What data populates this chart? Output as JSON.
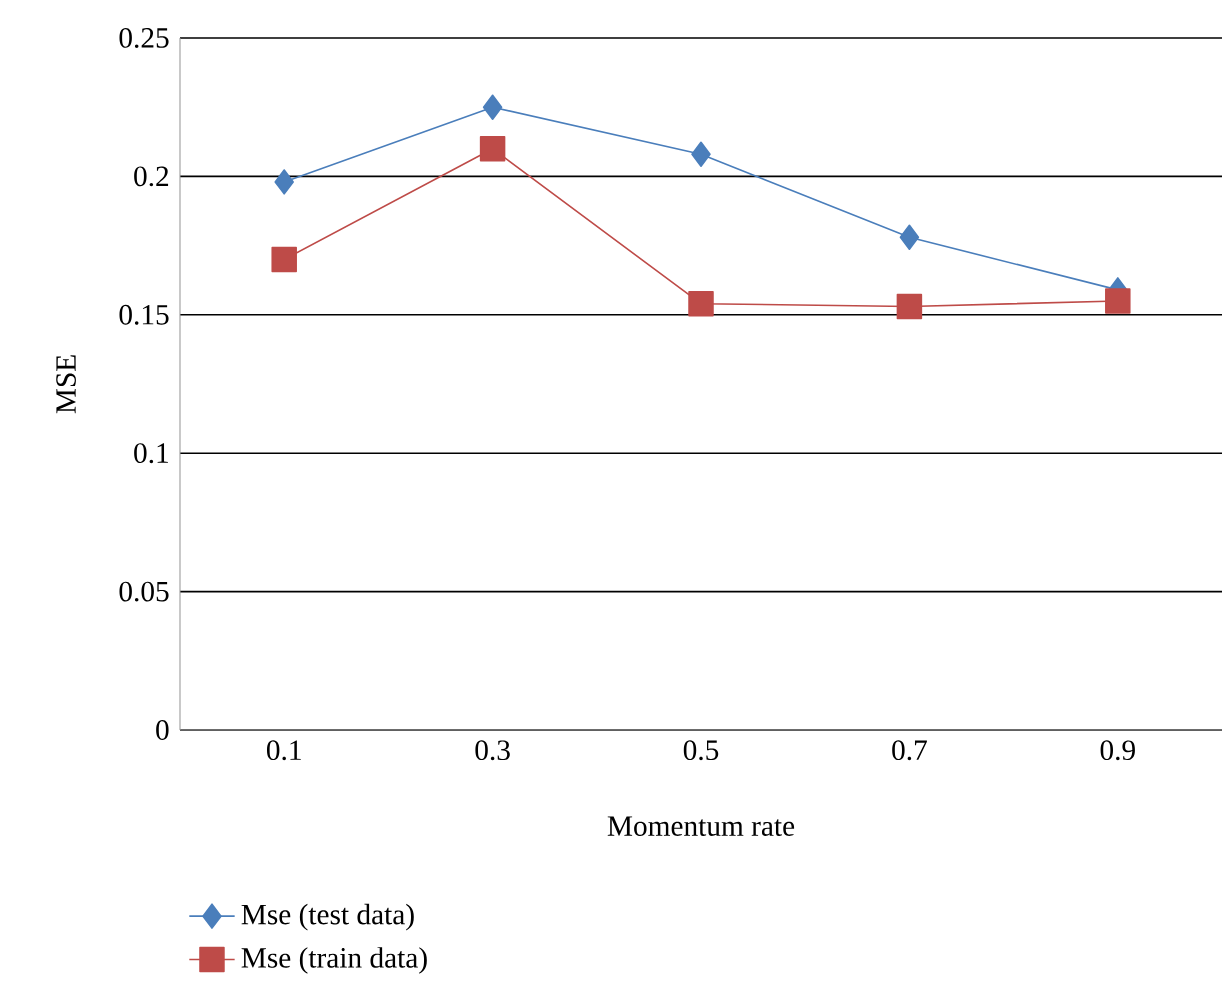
{
  "chart_data": {
    "type": "line",
    "xlabel": "Momentum rate",
    "ylabel": "MSE",
    "categories": [
      "0.1",
      "0.3",
      "0.5",
      "0.7",
      "0.9"
    ],
    "series": [
      {
        "name": "Mse (test data)",
        "color": "#4a7ebb",
        "marker": "diamond",
        "values": [
          0.198,
          0.225,
          0.208,
          0.178,
          0.159
        ]
      },
      {
        "name": "Mse (train data)",
        "color": "#be4b48",
        "marker": "square",
        "values": [
          0.17,
          0.21,
          0.154,
          0.153,
          0.155
        ]
      }
    ],
    "ylim": [
      0,
      0.25
    ],
    "yticks": [
      0,
      0.05,
      0.1,
      0.15,
      0.2,
      0.25
    ],
    "grid": "y",
    "legend": "bottom left"
  }
}
